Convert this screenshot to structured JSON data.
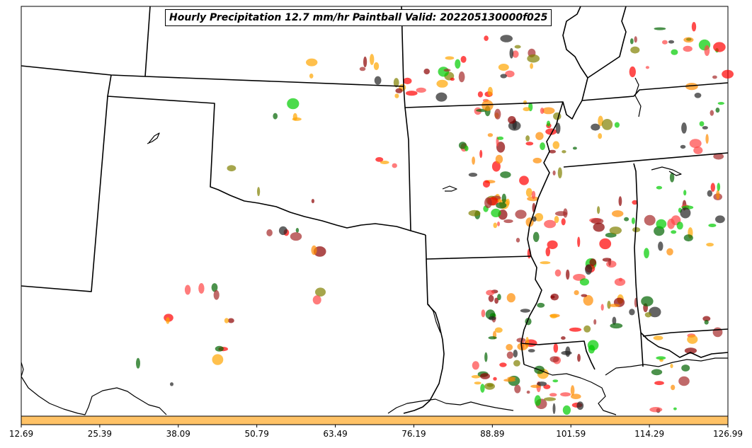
{
  "title": "Hourly Precipitation 12.7 mm/hr Paintball Valid: 202205130000f025",
  "colorbar": {
    "color": "#ffc266",
    "ticks": [
      "12.69",
      "25.39",
      "38.09",
      "50.79",
      "63.49",
      "76.19",
      "88.89",
      "101.59",
      "114.29",
      "126.99"
    ]
  },
  "member_colors": [
    "#ff0000",
    "#00cc00",
    "#8b0000",
    "#ff8c00",
    "#ffa500",
    "#006400",
    "#222222",
    "#a52a2a",
    "#808000",
    "#ff4444"
  ]
}
